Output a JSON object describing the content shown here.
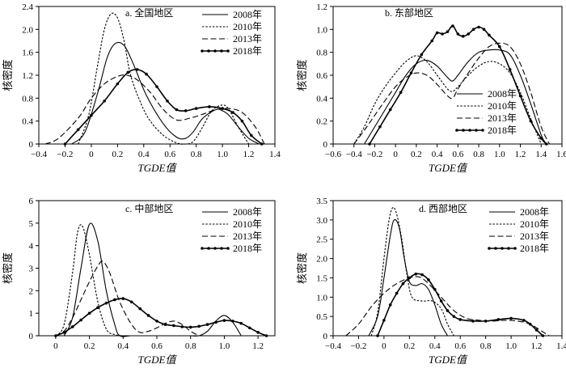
{
  "chart_data": [
    {
      "type": "line",
      "title": "a. 全国地区",
      "xlabel": "TGDE值",
      "ylabel": "核密度",
      "xlim": [
        -0.4,
        1.4
      ],
      "ylim": [
        0,
        2.4
      ],
      "xticks": [
        -0.4,
        -0.2,
        0,
        0.2,
        0.4,
        0.6,
        0.8,
        1.0,
        1.2,
        1.4
      ],
      "yticks": [
        0,
        0.4,
        0.8,
        1.2,
        1.6,
        2.0,
        2.4
      ],
      "xtick_labels": [
        "−0.4",
        "−0.2",
        "0",
        "0.2",
        "0.4",
        "0.6",
        "0.8",
        "1.0",
        "1.2",
        "1.4"
      ],
      "ytick_labels": [
        "0",
        "0.4",
        "0.8",
        "1.2",
        "1.6",
        "2.0",
        "2.4"
      ],
      "legend": "top-right",
      "series": [
        {
          "name": "2008年",
          "style": "solid",
          "x": [
            -0.15,
            -0.05,
            0.05,
            0.12,
            0.18,
            0.25,
            0.32,
            0.42,
            0.55,
            0.65,
            0.72,
            0.78,
            0.85,
            0.95,
            1.0,
            1.05,
            1.12,
            1.2,
            1.28
          ],
          "y": [
            0,
            0.2,
            0.9,
            1.5,
            1.75,
            1.72,
            1.4,
            0.85,
            0.35,
            0.12,
            0.1,
            0.22,
            0.45,
            0.6,
            0.58,
            0.5,
            0.3,
            0.1,
            0
          ]
        },
        {
          "name": "2010年",
          "style": "short-dash",
          "x": [
            -0.1,
            -0.02,
            0.05,
            0.1,
            0.15,
            0.2,
            0.25,
            0.3,
            0.38,
            0.45,
            0.55,
            0.65,
            0.72,
            0.78,
            0.85,
            0.92,
            1.0,
            1.05,
            1.12,
            1.2
          ],
          "y": [
            0,
            0.5,
            1.4,
            2.0,
            2.27,
            2.2,
            1.8,
            1.2,
            0.7,
            0.4,
            0.15,
            0.02,
            0,
            0.05,
            0.3,
            0.58,
            0.68,
            0.6,
            0.3,
            0
          ]
        },
        {
          "name": "2013年",
          "style": "long-dash",
          "x": [
            -0.35,
            -0.25,
            -0.1,
            0.0,
            0.1,
            0.2,
            0.27,
            0.35,
            0.45,
            0.55,
            0.65,
            0.75,
            0.85,
            0.95,
            1.05,
            1.15,
            1.25,
            1.32
          ],
          "y": [
            0,
            0.1,
            0.45,
            0.8,
            1.05,
            1.18,
            1.2,
            1.12,
            0.9,
            0.6,
            0.42,
            0.45,
            0.52,
            0.6,
            0.62,
            0.55,
            0.3,
            0
          ]
        },
        {
          "name": "2018年",
          "style": "solid-marker",
          "x": [
            -0.2,
            -0.1,
            0.0,
            0.1,
            0.2,
            0.28,
            0.35,
            0.42,
            0.5,
            0.58,
            0.65,
            0.72,
            0.8,
            0.9,
            1.0,
            1.08,
            1.15,
            1.22,
            1.3
          ],
          "y": [
            0,
            0.25,
            0.5,
            0.75,
            1.05,
            1.25,
            1.3,
            1.22,
            1.0,
            0.75,
            0.6,
            0.58,
            0.62,
            0.65,
            0.62,
            0.55,
            0.4,
            0.15,
            0
          ]
        }
      ]
    },
    {
      "type": "line",
      "title": "b. 东部地区",
      "xlabel": "TGDE值",
      "ylabel": "核密度",
      "xlim": [
        -0.6,
        1.6
      ],
      "ylim": [
        0,
        1.2
      ],
      "xticks": [
        -0.6,
        -0.4,
        -0.2,
        0,
        0.2,
        0.4,
        0.6,
        0.8,
        1.0,
        1.2,
        1.4,
        1.6
      ],
      "yticks": [
        0,
        0.2,
        0.4,
        0.6,
        0.8,
        1.0,
        1.2
      ],
      "xtick_labels": [
        "−0.6",
        "−0.4",
        "−0.2",
        "0",
        "0.2",
        "0.4",
        "0.6",
        "0.8",
        "1.0",
        "1.2",
        "1.4",
        "1.6"
      ],
      "ytick_labels": [
        "0",
        "0.2",
        "0.4",
        "0.6",
        "0.8",
        "1.0",
        "1.2"
      ],
      "legend": "bottom-right",
      "series": [
        {
          "name": "2008年",
          "style": "solid",
          "x": [
            -0.3,
            -0.2,
            -0.1,
            0.0,
            0.1,
            0.2,
            0.3,
            0.4,
            0.5,
            0.55,
            0.6,
            0.7,
            0.8,
            0.9,
            1.0,
            1.1,
            1.2,
            1.3,
            1.4,
            1.45
          ],
          "y": [
            0,
            0.15,
            0.3,
            0.45,
            0.6,
            0.7,
            0.73,
            0.68,
            0.58,
            0.55,
            0.6,
            0.72,
            0.8,
            0.82,
            0.82,
            0.78,
            0.6,
            0.35,
            0.08,
            0
          ]
        },
        {
          "name": "2010年",
          "style": "short-dash",
          "x": [
            -0.4,
            -0.3,
            -0.2,
            -0.1,
            0.0,
            0.1,
            0.2,
            0.3,
            0.4,
            0.5,
            0.55,
            0.6,
            0.7,
            0.8,
            0.9,
            1.0,
            1.1,
            1.2,
            1.3,
            1.4
          ],
          "y": [
            0,
            0.15,
            0.35,
            0.5,
            0.62,
            0.72,
            0.77,
            0.72,
            0.6,
            0.48,
            0.46,
            0.5,
            0.6,
            0.68,
            0.72,
            0.7,
            0.62,
            0.45,
            0.22,
            0
          ]
        },
        {
          "name": "2013年",
          "style": "long-dash",
          "x": [
            -0.4,
            -0.3,
            -0.2,
            -0.1,
            0.0,
            0.1,
            0.2,
            0.3,
            0.4,
            0.5,
            0.55,
            0.6,
            0.7,
            0.8,
            0.9,
            1.0,
            1.1,
            1.2,
            1.3,
            1.4,
            1.48
          ],
          "y": [
            0,
            0.12,
            0.25,
            0.38,
            0.5,
            0.58,
            0.62,
            0.6,
            0.52,
            0.42,
            0.4,
            0.48,
            0.62,
            0.75,
            0.85,
            0.88,
            0.85,
            0.7,
            0.45,
            0.15,
            0
          ]
        },
        {
          "name": "2018年",
          "style": "solid-marker",
          "x": [
            -0.25,
            -0.15,
            -0.05,
            0.05,
            0.15,
            0.25,
            0.35,
            0.4,
            0.45,
            0.5,
            0.55,
            0.6,
            0.65,
            0.7,
            0.75,
            0.8,
            0.85,
            0.9,
            1.0,
            1.1,
            1.2,
            1.3,
            1.4,
            1.45
          ],
          "y": [
            0,
            0.15,
            0.3,
            0.45,
            0.62,
            0.78,
            0.9,
            0.97,
            0.96,
            0.98,
            1.03,
            0.96,
            0.94,
            0.96,
            1.0,
            1.02,
            1.0,
            0.95,
            0.85,
            0.65,
            0.42,
            0.2,
            0.05,
            0
          ]
        }
      ]
    },
    {
      "type": "line",
      "title": "c. 中部地区",
      "xlabel": "TGDE值",
      "ylabel": "核密度",
      "xlim": [
        -0.1,
        1.3
      ],
      "ylim": [
        0,
        6
      ],
      "xticks": [
        0,
        0.2,
        0.4,
        0.6,
        0.8,
        1.0,
        1.2
      ],
      "yticks": [
        0,
        1,
        2,
        3,
        4,
        5,
        6
      ],
      "xtick_labels": [
        "0",
        "0.2",
        "0.4",
        "0.6",
        "0.8",
        "1.0",
        "1.2"
      ],
      "ytick_labels": [
        "0",
        "1",
        "2",
        "3",
        "4",
        "5",
        "6"
      ],
      "legend": "top-right",
      "series": [
        {
          "name": "2008年",
          "style": "solid",
          "x": [
            0.05,
            0.1,
            0.15,
            0.2,
            0.25,
            0.3,
            0.35,
            0.38,
            0.45,
            0.55,
            0.65,
            0.75,
            0.8,
            0.85,
            0.9,
            0.95,
            1.0,
            1.05,
            1.1
          ],
          "y": [
            0,
            0.8,
            3.0,
            4.95,
            4.2,
            2.0,
            0.5,
            0,
            0,
            0,
            0,
            0,
            0,
            0,
            0.2,
            0.65,
            0.9,
            0.6,
            0
          ]
        },
        {
          "name": "2010年",
          "style": "short-dash",
          "x": [
            0.0,
            0.05,
            0.1,
            0.13,
            0.16,
            0.2,
            0.25,
            0.3,
            0.35,
            0.4
          ],
          "y": [
            0,
            0.5,
            2.8,
            4.6,
            4.85,
            3.6,
            1.5,
            0.3,
            0.05,
            0
          ]
        },
        {
          "name": "2013年",
          "style": "long-dash",
          "x": [
            0.0,
            0.05,
            0.1,
            0.15,
            0.2,
            0.25,
            0.28,
            0.32,
            0.38,
            0.45,
            0.5,
            0.55,
            0.6,
            0.65,
            0.7,
            0.75,
            0.8,
            0.85
          ],
          "y": [
            0,
            0.2,
            0.8,
            1.6,
            2.4,
            3.1,
            3.3,
            2.8,
            1.5,
            0.5,
            0.15,
            0.2,
            0.35,
            0.55,
            0.65,
            0.5,
            0.2,
            0
          ]
        },
        {
          "name": "2018年",
          "style": "solid-marker",
          "x": [
            0.0,
            0.05,
            0.1,
            0.15,
            0.2,
            0.25,
            0.3,
            0.35,
            0.4,
            0.45,
            0.5,
            0.55,
            0.6,
            0.65,
            0.7,
            0.75,
            0.8,
            0.85,
            0.9,
            0.95,
            1.0,
            1.05,
            1.1,
            1.15,
            1.2,
            1.25
          ],
          "y": [
            0,
            0.15,
            0.4,
            0.7,
            1.0,
            1.25,
            1.45,
            1.6,
            1.65,
            1.5,
            1.2,
            0.9,
            0.65,
            0.5,
            0.45,
            0.4,
            0.38,
            0.42,
            0.5,
            0.6,
            0.68,
            0.65,
            0.55,
            0.35,
            0.15,
            0
          ]
        }
      ]
    },
    {
      "type": "line",
      "title": "d. 西部地区",
      "xlabel": "TGDE值",
      "ylabel": "核密度",
      "xlim": [
        -0.4,
        1.4
      ],
      "ylim": [
        0,
        3.5
      ],
      "xticks": [
        -0.4,
        -0.2,
        0,
        0.2,
        0.4,
        0.6,
        0.8,
        1.0,
        1.2,
        1.4
      ],
      "yticks": [
        0,
        0.5,
        1.0,
        1.5,
        2.0,
        2.5,
        3.0,
        3.5
      ],
      "xtick_labels": [
        "−0.4",
        "−0.2",
        "0",
        "0.2",
        "0.4",
        "0.6",
        "0.8",
        "1.0",
        "1.2",
        "1.4"
      ],
      "ytick_labels": [
        "0",
        "0.5",
        "1.0",
        "1.5",
        "2.0",
        "2.5",
        "3.0",
        "3.5"
      ],
      "legend": "top-right",
      "series": [
        {
          "name": "2008年",
          "style": "solid",
          "x": [
            -0.12,
            -0.05,
            0.0,
            0.05,
            0.08,
            0.12,
            0.16,
            0.2,
            0.25,
            0.3,
            0.35,
            0.4,
            0.45,
            0.5
          ],
          "y": [
            0,
            0.5,
            1.5,
            2.6,
            3.0,
            2.8,
            2.0,
            1.4,
            1.3,
            1.35,
            1.2,
            0.8,
            0.3,
            0
          ]
        },
        {
          "name": "2010年",
          "style": "short-dash",
          "x": [
            -0.1,
            -0.05,
            0.0,
            0.04,
            0.07,
            0.1,
            0.14,
            0.18,
            0.22,
            0.3,
            0.38,
            0.45,
            0.5,
            0.55
          ],
          "y": [
            0,
            0.6,
            2.0,
            3.0,
            3.32,
            3.15,
            2.5,
            1.6,
            1.0,
            0.9,
            0.9,
            0.7,
            0.3,
            0
          ]
        },
        {
          "name": "2013年",
          "style": "long-dash",
          "x": [
            -0.3,
            -0.2,
            -0.1,
            0.0,
            0.1,
            0.2,
            0.28,
            0.35,
            0.45,
            0.55,
            0.65,
            0.75,
            0.85,
            0.95,
            1.05,
            1.15,
            1.25,
            1.3
          ],
          "y": [
            0,
            0.3,
            0.75,
            1.1,
            1.35,
            1.5,
            1.52,
            1.35,
            1.0,
            0.65,
            0.45,
            0.4,
            0.38,
            0.4,
            0.38,
            0.3,
            0.1,
            0
          ]
        },
        {
          "name": "2018年",
          "style": "solid-marker",
          "x": [
            -0.05,
            0.0,
            0.05,
            0.1,
            0.15,
            0.2,
            0.25,
            0.3,
            0.35,
            0.4,
            0.45,
            0.5,
            0.55,
            0.6,
            0.7,
            0.8,
            0.9,
            1.0,
            1.1,
            1.15,
            1.2,
            1.25
          ],
          "y": [
            0,
            0.4,
            0.8,
            1.1,
            1.35,
            1.5,
            1.6,
            1.58,
            1.45,
            1.2,
            0.9,
            0.65,
            0.5,
            0.42,
            0.38,
            0.38,
            0.42,
            0.45,
            0.4,
            0.3,
            0.15,
            0
          ]
        }
      ]
    }
  ]
}
